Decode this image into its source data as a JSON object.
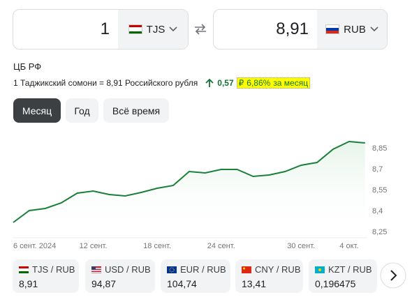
{
  "converter": {
    "from_amount": "1",
    "from_currency": "TJS",
    "to_amount": "8,91",
    "to_currency": "RUB"
  },
  "source": "ЦБ РФ",
  "rate_text": "1 Таджикский сомони = 8,91 Российского рубля",
  "change": {
    "amount": "0,57",
    "currency": "₽",
    "percent": "6,86%",
    "period": "за месяц"
  },
  "tabs": [
    "Месяц",
    "Год",
    "Всё время"
  ],
  "chart_data": {
    "type": "line",
    "color": "#188038",
    "categories": [
      "6 сент. 2024",
      null,
      null,
      null,
      null,
      "12 сент.",
      null,
      null,
      null,
      "18 сент.",
      null,
      null,
      null,
      "24 сент.",
      null,
      null,
      null,
      null,
      "30 сент.",
      null,
      null,
      "4 окт.",
      null
    ],
    "values": [
      8.315,
      8.4,
      8.415,
      8.455,
      8.525,
      8.54,
      8.515,
      8.505,
      8.53,
      8.56,
      8.58,
      8.68,
      8.67,
      8.695,
      8.695,
      8.645,
      8.655,
      8.68,
      8.725,
      8.745,
      8.84,
      8.895,
      8.885
    ],
    "ylim": [
      8.21,
      8.93
    ],
    "yticks": [
      {
        "value": 8.25,
        "label": "8,25"
      },
      {
        "value": 8.4,
        "label": "8,4"
      },
      {
        "value": 8.55,
        "label": "8,55"
      },
      {
        "value": 8.7,
        "label": "8,7"
      },
      {
        "value": 8.85,
        "label": "8,85"
      }
    ]
  },
  "pairs": [
    {
      "label": "TJS / RUB",
      "value": "8,91"
    },
    {
      "label": "USD / RUB",
      "value": "94,87"
    },
    {
      "label": "EUR / RUB",
      "value": "104,74"
    },
    {
      "label": "CNY / RUB",
      "value": "13,41"
    },
    {
      "label": "KZT / RUB",
      "value": "0,196475"
    }
  ]
}
